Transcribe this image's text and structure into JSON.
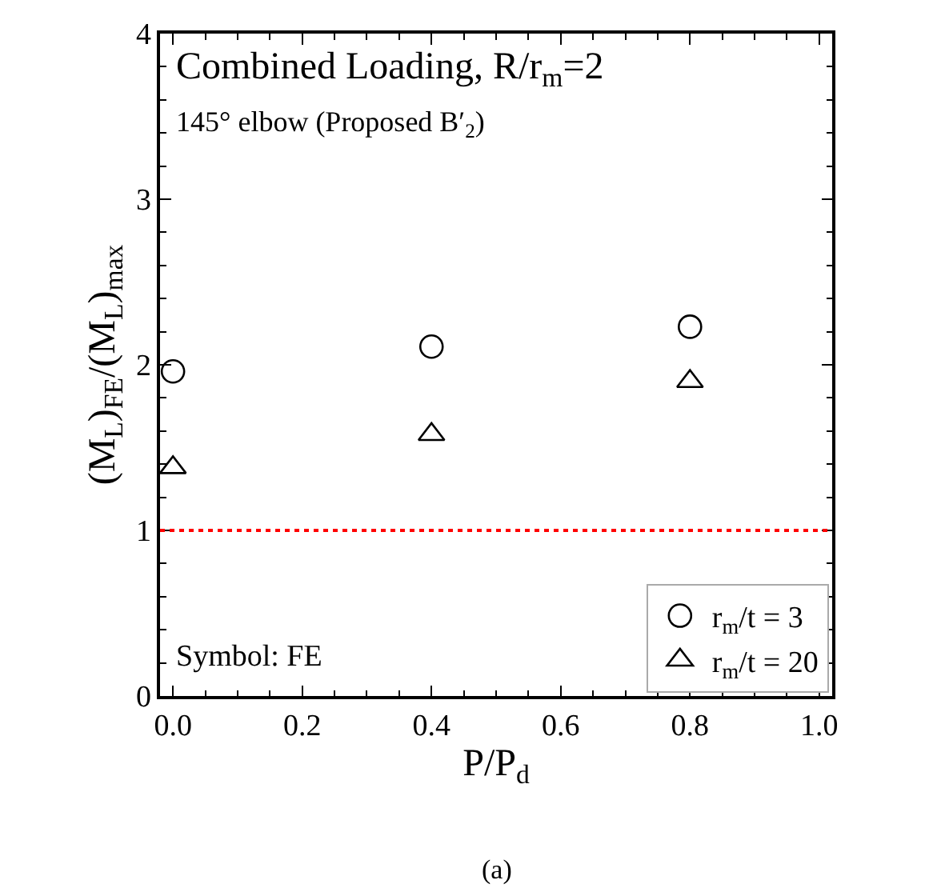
{
  "chart_data": {
    "type": "scatter",
    "title": "Combined Loading, R/r$_{m}$=2",
    "subtitle": "145° elbow (Proposed B′$_{2}$)",
    "xlabel": "P/P$_{d}$",
    "ylabel": "(M$_{L}$)$_{FE}$/(M$_{L}$)$_{max}$",
    "x": [
      0.0,
      0.4,
      0.8
    ],
    "series": [
      {
        "name": "r$_{m}$/t = 3",
        "color": "#000000",
        "marker": "circle",
        "values": [
          1.96,
          2.11,
          2.23
        ]
      },
      {
        "name": "r$_{m}$/t = 20",
        "color": "#000000",
        "marker": "triangle",
        "values": [
          1.38,
          1.58,
          1.9
        ]
      }
    ],
    "xlim": [
      -0.02,
      1.02
    ],
    "xticks": [
      {
        "value": 0,
        "label": "0.0"
      },
      0.2,
      0.4,
      0.6,
      0.8,
      {
        "value": 1,
        "label": "1.0"
      }
    ],
    "ylim": [
      0,
      4
    ],
    "yticks": [
      0,
      1,
      2,
      3,
      4
    ],
    "ref_lines": [
      {
        "axis": "y",
        "value": 1,
        "color": "#ff0000",
        "line_style": "dotted"
      }
    ],
    "annotations": [
      "Symbol: FE",
      "(a)"
    ],
    "legend": "bottom right"
  }
}
